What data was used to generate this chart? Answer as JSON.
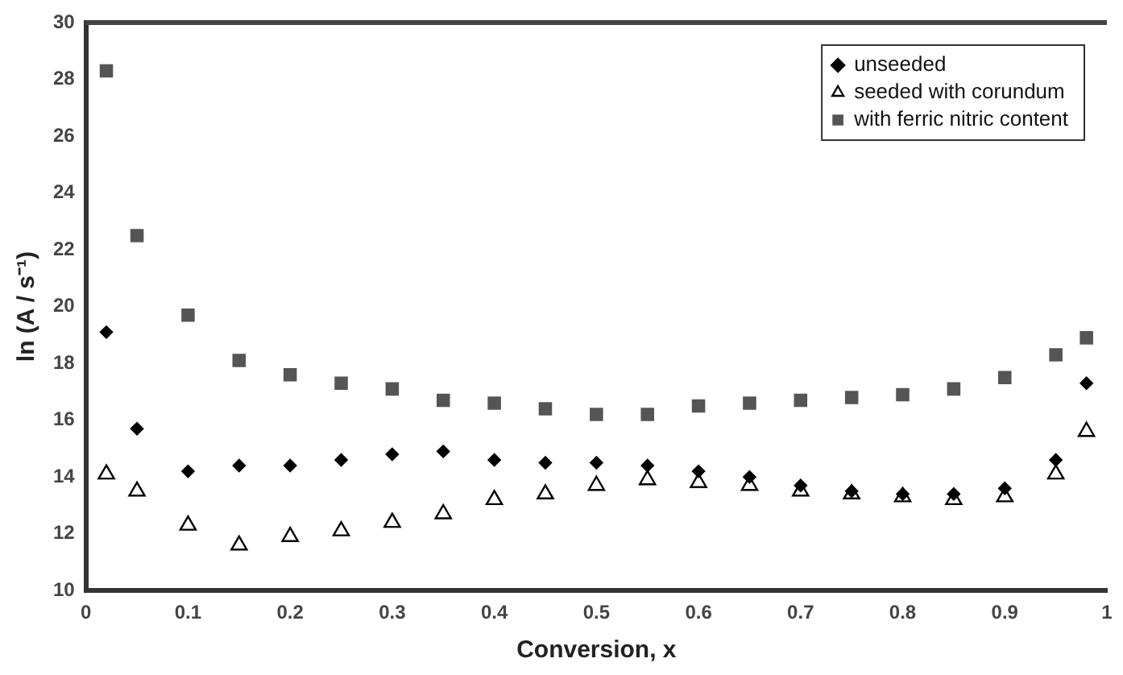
{
  "chart_data": {
    "type": "scatter",
    "xlabel": "Conversion, x",
    "ylabel": "ln (A / s⁻¹)",
    "x": [
      0.02,
      0.05,
      0.1,
      0.15,
      0.2,
      0.25,
      0.3,
      0.35,
      0.4,
      0.45,
      0.5,
      0.55,
      0.6,
      0.65,
      0.7,
      0.75,
      0.8,
      0.85,
      0.9,
      0.95,
      0.98
    ],
    "series": [
      {
        "name": "unseeded",
        "color": "#000000",
        "marker": "diamond",
        "values": [
          19.1,
          15.7,
          14.2,
          14.4,
          14.4,
          14.6,
          14.8,
          14.9,
          14.6,
          14.5,
          14.5,
          14.4,
          14.2,
          14.0,
          13.7,
          13.5,
          13.4,
          13.4,
          13.6,
          14.6,
          17.3
        ]
      },
      {
        "name": "seeded with corundum",
        "color": "#000000",
        "marker": "triangle",
        "values": [
          14.1,
          13.5,
          12.3,
          11.6,
          11.9,
          12.1,
          12.4,
          12.7,
          13.2,
          13.4,
          13.7,
          13.9,
          13.8,
          13.7,
          13.5,
          13.4,
          13.3,
          13.2,
          13.3,
          14.1,
          15.6
        ]
      },
      {
        "name": "with ferric nitric content",
        "color": "#555555",
        "marker": "square",
        "values": [
          28.3,
          22.5,
          19.7,
          18.1,
          17.6,
          17.3,
          17.1,
          16.7,
          16.6,
          16.4,
          16.2,
          16.2,
          16.5,
          16.6,
          16.7,
          16.8,
          16.9,
          17.1,
          17.5,
          18.3,
          18.9
        ]
      }
    ],
    "xlim": [
      0,
      1
    ],
    "xticks": [
      0,
      0.1,
      0.2,
      0.3,
      0.4,
      0.5,
      0.6,
      0.7,
      0.8,
      0.9,
      1
    ],
    "ylim": [
      10,
      30
    ],
    "yticks": [
      10,
      12,
      14,
      16,
      18,
      20,
      22,
      24,
      26,
      28,
      30
    ],
    "grid": false,
    "legend": "top right"
  }
}
